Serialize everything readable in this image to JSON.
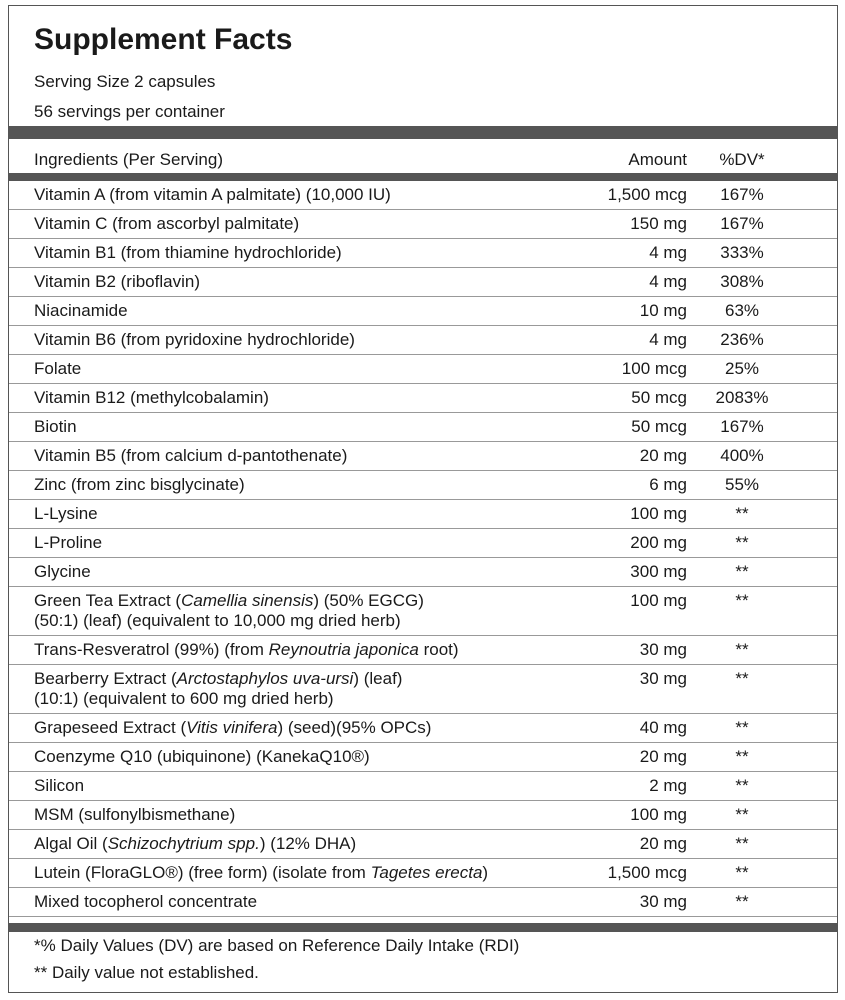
{
  "header": {
    "title": "Supplement Facts",
    "serving_size": "Serving Size 2 capsules",
    "servings": "56 servings per container"
  },
  "table": {
    "columns": [
      "Ingredients (Per Serving)",
      "Amount",
      "%DV*"
    ],
    "rows": [
      {
        "name": [
          "Vitamin A (from vitamin A palmitate) (10,000 IU)"
        ],
        "amount": "1,500 mcg",
        "dv": "167%"
      },
      {
        "name": [
          "Vitamin C (from ascorbyl palmitate)"
        ],
        "amount": "150 mg",
        "dv": "167%"
      },
      {
        "name": [
          "Vitamin B1 (from thiamine hydrochloride)"
        ],
        "amount": "4 mg",
        "dv": "333%"
      },
      {
        "name": [
          "Vitamin B2 (riboflavin)"
        ],
        "amount": "4 mg",
        "dv": "308%"
      },
      {
        "name": [
          "Niacinamide"
        ],
        "amount": "10 mg",
        "dv": "63%"
      },
      {
        "name": [
          "Vitamin B6 (from pyridoxine hydrochloride)"
        ],
        "amount": "4 mg",
        "dv": "236%"
      },
      {
        "name": [
          "Folate"
        ],
        "amount": "100 mcg",
        "dv": "25%"
      },
      {
        "name": [
          "Vitamin B12 (methylcobalamin)"
        ],
        "amount": "50 mcg",
        "dv": "2083%"
      },
      {
        "name": [
          "Biotin"
        ],
        "amount": "50 mcg",
        "dv": "167%"
      },
      {
        "name": [
          "Vitamin B5 (from calcium d-pantothenate)"
        ],
        "amount": "20 mg",
        "dv": "400%"
      },
      {
        "name": [
          "Zinc (from zinc bisglycinate)"
        ],
        "amount": "6 mg",
        "dv": "55%"
      },
      {
        "name": [
          "L-Lysine"
        ],
        "amount": "100 mg",
        "dv": "**"
      },
      {
        "name": [
          "L-Proline"
        ],
        "amount": "200 mg",
        "dv": "**"
      },
      {
        "name": [
          "Glycine"
        ],
        "amount": "300 mg",
        "dv": "**"
      },
      {
        "name": [
          "Green Tea Extract (",
          {
            "italic": "Camellia sinensis"
          },
          ") (50% EGCG)\n(50:1) (leaf) (equivalent to 10,000 mg dried herb)"
        ],
        "amount": "100 mg",
        "dv": "**"
      },
      {
        "name": [
          "Trans-Resveratrol (99%)  (from ",
          {
            "italic": "Reynoutria japonica"
          },
          " root)"
        ],
        "amount": "30 mg",
        "dv": "**"
      },
      {
        "name": [
          "Bearberry Extract (",
          {
            "italic": "Arctostaphylos uva-ursi"
          },
          ") (leaf)\n(10:1) (equivalent to 600 mg dried herb)"
        ],
        "amount": "30 mg",
        "dv": "**"
      },
      {
        "name": [
          "Grapeseed Extract (",
          {
            "italic": "Vitis vinifera"
          },
          ") (seed)(95% OPCs)"
        ],
        "amount": "40 mg",
        "dv": "**"
      },
      {
        "name": [
          "Coenzyme Q10 (ubiquinone) (KanekaQ10®)"
        ],
        "amount": "20 mg",
        "dv": "**"
      },
      {
        "name": [
          "Silicon"
        ],
        "amount": "2 mg",
        "dv": "**"
      },
      {
        "name": [
          "MSM (sulfonylbismethane)"
        ],
        "amount": "100 mg",
        "dv": "**"
      },
      {
        "name": [
          "Algal Oil (",
          {
            "italic": "Schizochytrium spp."
          },
          ") (12% DHA)"
        ],
        "amount": "20 mg",
        "dv": "**"
      },
      {
        "name": [
          "Lutein (FloraGLO®) (free form) (isolate from ",
          {
            "italic": "Tagetes erecta"
          },
          ")"
        ],
        "amount": "1,500 mcg",
        "dv": "**"
      },
      {
        "name": [
          "Mixed tocopherol concentrate"
        ],
        "amount": "30 mg",
        "dv": "**"
      }
    ]
  },
  "footer": {
    "note1": "*% Daily Values (DV) are based on Reference Daily Intake (RDI)",
    "note2": "** Daily value not established."
  }
}
